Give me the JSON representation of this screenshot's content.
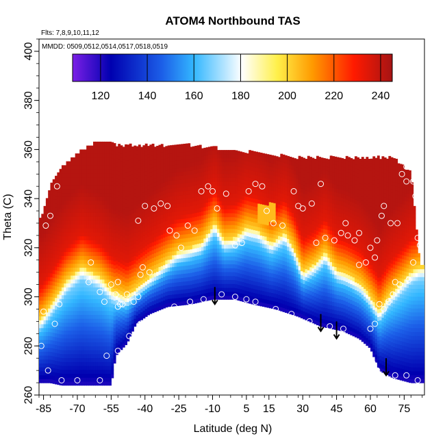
{
  "chart_data": {
    "type": "heatmap",
    "title": "ATOM4 Northbound TAS",
    "subtitle_flights": "Flts: 7,8,9,10,11,12",
    "subtitle_dates": "MMDD: 0509,0512,0514,0517,0518,0519",
    "xlabel": "Latitude (deg N)",
    "ylabel": "Theta (C)",
    "xlim": [
      -87,
      84
    ],
    "ylim": [
      260,
      405
    ],
    "x_ticks": [
      -85,
      -70,
      -55,
      -40,
      -25,
      -10,
      5,
      15,
      30,
      45,
      60,
      75
    ],
    "y_ticks": [
      260,
      280,
      300,
      320,
      340,
      360,
      380,
      400
    ],
    "colorbar": {
      "range": [
        108,
        245
      ],
      "ticks": [
        120,
        140,
        160,
        180,
        200,
        220,
        240
      ],
      "colors": [
        "#7b1fe6",
        "#0000b0",
        "#1c5fe8",
        "#33b7ff",
        "#ffffff",
        "#fff04a",
        "#ff9a00",
        "#ff1a00",
        "#a51414"
      ],
      "stops": [
        0,
        0.12,
        0.28,
        0.38,
        0.53,
        0.64,
        0.75,
        0.88,
        1
      ]
    },
    "columns": [
      {
        "lat": -86,
        "bottom": 265,
        "top": 332
      },
      {
        "lat": -82,
        "bottom": 265,
        "top": 345
      },
      {
        "lat": -77,
        "bottom": 264,
        "top": 352
      },
      {
        "lat": -70,
        "bottom": 264,
        "top": 358
      },
      {
        "lat": -62,
        "bottom": 264,
        "top": 362
      },
      {
        "lat": -55,
        "bottom": 264,
        "top": 362
      },
      {
        "lat": -53,
        "bottom": 276,
        "top": 361
      },
      {
        "lat": -48,
        "bottom": 281,
        "top": 361
      },
      {
        "lat": -44,
        "bottom": 289,
        "top": 361
      },
      {
        "lat": -38,
        "bottom": 293,
        "top": 361
      },
      {
        "lat": -30,
        "bottom": 296,
        "top": 361
      },
      {
        "lat": -20,
        "bottom": 297,
        "top": 361
      },
      {
        "lat": -10,
        "bottom": 299,
        "top": 360
      },
      {
        "lat": 0,
        "bottom": 299,
        "top": 359
      },
      {
        "lat": 8,
        "bottom": 297,
        "top": 358
      },
      {
        "lat": 18,
        "bottom": 295,
        "top": 357
      },
      {
        "lat": 28,
        "bottom": 292,
        "top": 356
      },
      {
        "lat": 38,
        "bottom": 288,
        "top": 356
      },
      {
        "lat": 48,
        "bottom": 286,
        "top": 356
      },
      {
        "lat": 55,
        "bottom": 283,
        "top": 356
      },
      {
        "lat": 60,
        "bottom": 279,
        "top": 356
      },
      {
        "lat": 64,
        "bottom": 270,
        "top": 356
      },
      {
        "lat": 70,
        "bottom": 267,
        "top": 356
      },
      {
        "lat": 78,
        "bottom": 265,
        "top": 350
      },
      {
        "lat": 82,
        "bottom": 265,
        "top": 313
      }
    ],
    "boundary": [
      {
        "lat": -86,
        "y": 291
      },
      {
        "lat": -80,
        "y": 299
      },
      {
        "lat": -75,
        "y": 306
      },
      {
        "lat": -68,
        "y": 312
      },
      {
        "lat": -60,
        "y": 308
      },
      {
        "lat": -54,
        "y": 302
      },
      {
        "lat": -48,
        "y": 300
      },
      {
        "lat": -42,
        "y": 305
      },
      {
        "lat": -38,
        "y": 308
      },
      {
        "lat": -32,
        "y": 313
      },
      {
        "lat": -26,
        "y": 318
      },
      {
        "lat": -20,
        "y": 320
      },
      {
        "lat": -15,
        "y": 322
      },
      {
        "lat": -9,
        "y": 330
      },
      {
        "lat": -5,
        "y": 323
      },
      {
        "lat": 0,
        "y": 324
      },
      {
        "lat": 5,
        "y": 328
      },
      {
        "lat": 10,
        "y": 327
      },
      {
        "lat": 16,
        "y": 322
      },
      {
        "lat": 22,
        "y": 326
      },
      {
        "lat": 26,
        "y": 320
      },
      {
        "lat": 30,
        "y": 310
      },
      {
        "lat": 35,
        "y": 313
      },
      {
        "lat": 40,
        "y": 318
      },
      {
        "lat": 45,
        "y": 311
      },
      {
        "lat": 50,
        "y": 309
      },
      {
        "lat": 56,
        "y": 305
      },
      {
        "lat": 60,
        "y": 300
      },
      {
        "lat": 64,
        "y": 294
      },
      {
        "lat": 68,
        "y": 300
      },
      {
        "lat": 73,
        "y": 305
      },
      {
        "lat": 78,
        "y": 310
      },
      {
        "lat": 82,
        "y": 312
      }
    ],
    "points": [
      [
        -84,
        329
      ],
      [
        -82,
        333
      ],
      [
        -79,
        345
      ],
      [
        -85,
        294
      ],
      [
        -78,
        297
      ],
      [
        -86,
        280
      ],
      [
        -80,
        289
      ],
      [
        -60,
        302
      ],
      [
        -55,
        305
      ],
      [
        -53,
        301
      ],
      [
        -52,
        306
      ],
      [
        -50,
        297
      ],
      [
        -48,
        301
      ],
      [
        -52,
        296
      ],
      [
        -51,
        297
      ],
      [
        -45,
        298
      ],
      [
        -43,
        300
      ],
      [
        -42,
        309
      ],
      [
        -41,
        312
      ],
      [
        -43,
        331
      ],
      [
        -40,
        337
      ],
      [
        -36,
        336
      ],
      [
        -33,
        338
      ],
      [
        -30,
        337
      ],
      [
        -29,
        327
      ],
      [
        -26,
        325
      ],
      [
        -24,
        320
      ],
      [
        -21,
        329
      ],
      [
        -18,
        327
      ],
      [
        -15,
        343
      ],
      [
        -12,
        345
      ],
      [
        -10,
        343
      ],
      [
        -8,
        336
      ],
      [
        -4,
        342
      ],
      [
        0,
        321
      ],
      [
        3,
        322
      ],
      [
        6,
        343
      ],
      [
        9,
        346
      ],
      [
        12,
        345
      ],
      [
        14,
        335
      ],
      [
        17,
        330
      ],
      [
        21,
        329
      ],
      [
        26,
        343
      ],
      [
        28,
        337
      ],
      [
        30,
        336
      ],
      [
        34,
        338
      ],
      [
        38,
        346
      ],
      [
        36,
        322
      ],
      [
        40,
        324
      ],
      [
        44,
        323
      ],
      [
        47,
        326
      ],
      [
        49,
        330
      ],
      [
        50,
        325
      ],
      [
        53,
        323
      ],
      [
        55,
        326
      ],
      [
        55,
        313
      ],
      [
        58,
        314
      ],
      [
        62,
        316
      ],
      [
        60,
        320
      ],
      [
        63,
        323
      ],
      [
        65,
        333
      ],
      [
        66,
        337
      ],
      [
        69,
        330
      ],
      [
        72,
        330
      ],
      [
        74,
        350
      ],
      [
        76,
        353
      ],
      [
        76,
        347
      ],
      [
        79,
        347
      ],
      [
        77,
        355
      ],
      [
        80,
        341
      ],
      [
        81,
        324
      ],
      [
        82,
        321
      ],
      [
        79,
        314
      ],
      [
        77,
        307
      ],
      [
        73,
        305
      ],
      [
        71,
        306
      ],
      [
        70,
        301
      ],
      [
        68,
        298
      ],
      [
        66,
        295
      ],
      [
        64,
        297
      ],
      [
        62,
        289
      ],
      [
        60,
        287
      ],
      [
        58,
        277
      ],
      [
        61,
        273
      ],
      [
        63,
        270
      ],
      [
        66,
        264
      ],
      [
        71,
        268
      ],
      [
        76,
        268
      ],
      [
        81,
        266
      ],
      [
        48,
        287
      ],
      [
        42,
        288
      ],
      [
        33,
        290
      ],
      [
        25,
        293
      ],
      [
        18,
        295
      ],
      [
        9,
        298
      ],
      [
        5,
        299
      ],
      [
        0,
        300
      ],
      [
        -6,
        301
      ],
      [
        -14,
        299
      ],
      [
        -20,
        298
      ],
      [
        -27,
        296
      ],
      [
        -35,
        292
      ],
      [
        -42,
        289
      ],
      [
        -47,
        284
      ],
      [
        -52,
        278
      ],
      [
        -57,
        276
      ],
      [
        -60,
        266
      ],
      [
        -70,
        266
      ],
      [
        -77,
        266
      ],
      [
        -83,
        270
      ],
      [
        -64,
        314
      ],
      [
        -58,
        298
      ],
      [
        -65,
        306
      ],
      [
        -38,
        310
      ]
    ],
    "arrows": [
      {
        "lat": -9,
        "y_start": 304,
        "y_end": 297
      },
      {
        "lat": 38,
        "y_start": 293,
        "y_end": 286
      },
      {
        "lat": 45,
        "y_start": 290,
        "y_end": 283
      },
      {
        "lat": 67,
        "y_start": 275,
        "y_end": 268
      }
    ]
  }
}
